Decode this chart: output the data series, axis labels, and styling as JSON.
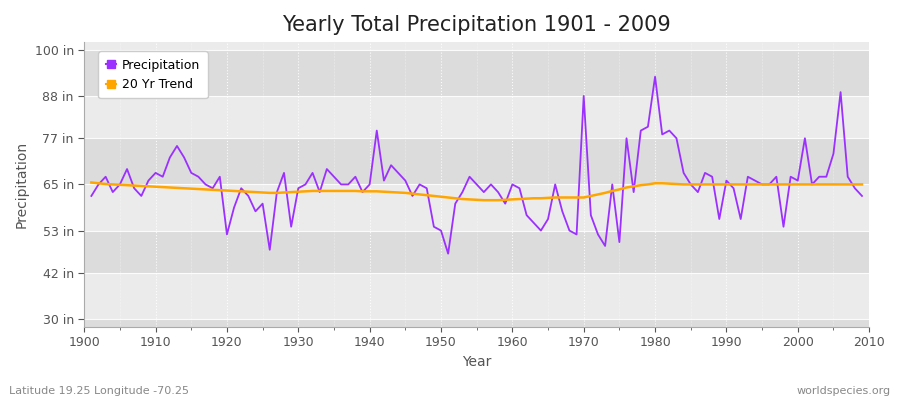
{
  "title": "Yearly Total Precipitation 1901 - 2009",
  "xlabel": "Year",
  "ylabel": "Precipitation",
  "bottom_left_label": "Latitude 19.25 Longitude -70.25",
  "bottom_right_label": "worldspecies.org",
  "years": [
    1901,
    1902,
    1903,
    1904,
    1905,
    1906,
    1907,
    1908,
    1909,
    1910,
    1911,
    1912,
    1913,
    1914,
    1915,
    1916,
    1917,
    1918,
    1919,
    1920,
    1921,
    1922,
    1923,
    1924,
    1925,
    1926,
    1927,
    1928,
    1929,
    1930,
    1931,
    1932,
    1933,
    1934,
    1935,
    1936,
    1937,
    1938,
    1939,
    1940,
    1941,
    1942,
    1943,
    1944,
    1945,
    1946,
    1947,
    1948,
    1949,
    1950,
    1951,
    1952,
    1953,
    1954,
    1955,
    1956,
    1957,
    1958,
    1959,
    1960,
    1961,
    1962,
    1963,
    1964,
    1965,
    1966,
    1967,
    1968,
    1969,
    1970,
    1971,
    1972,
    1973,
    1974,
    1975,
    1976,
    1977,
    1978,
    1979,
    1980,
    1981,
    1982,
    1983,
    1984,
    1985,
    1986,
    1987,
    1988,
    1989,
    1990,
    1991,
    1992,
    1993,
    1994,
    1995,
    1996,
    1997,
    1998,
    1999,
    2000,
    2001,
    2002,
    2003,
    2004,
    2005,
    2006,
    2007,
    2008,
    2009
  ],
  "precip": [
    62,
    65,
    67,
    63,
    65,
    69,
    64,
    62,
    66,
    68,
    67,
    72,
    75,
    72,
    68,
    67,
    65,
    64,
    67,
    52,
    59,
    64,
    62,
    58,
    60,
    48,
    63,
    68,
    54,
    64,
    65,
    68,
    63,
    69,
    67,
    65,
    65,
    67,
    63,
    65,
    79,
    66,
    70,
    68,
    66,
    62,
    65,
    64,
    54,
    53,
    47,
    60,
    63,
    67,
    65,
    63,
    65,
    63,
    60,
    65,
    64,
    57,
    55,
    53,
    56,
    65,
    58,
    53,
    52,
    88,
    57,
    52,
    49,
    65,
    50,
    77,
    63,
    79,
    80,
    93,
    78,
    79,
    77,
    68,
    65,
    63,
    68,
    67,
    56,
    66,
    64,
    56,
    67,
    66,
    65,
    65,
    67,
    54,
    67,
    66,
    77,
    65,
    67,
    67,
    73,
    89,
    67,
    64,
    62
  ],
  "trend": [
    65.5,
    65.3,
    65.1,
    65.0,
    64.9,
    64.8,
    64.7,
    64.6,
    64.5,
    64.4,
    64.3,
    64.2,
    64.1,
    64.0,
    63.9,
    63.8,
    63.7,
    63.6,
    63.5,
    63.4,
    63.3,
    63.2,
    63.1,
    63.0,
    62.9,
    62.8,
    62.8,
    62.9,
    63.0,
    63.1,
    63.2,
    63.3,
    63.3,
    63.3,
    63.3,
    63.3,
    63.3,
    63.3,
    63.2,
    63.2,
    63.2,
    63.1,
    63.0,
    62.9,
    62.8,
    62.6,
    62.4,
    62.2,
    62.0,
    61.8,
    61.6,
    61.4,
    61.2,
    61.1,
    61.0,
    60.9,
    60.9,
    60.9,
    61.0,
    61.1,
    61.2,
    61.3,
    61.4,
    61.4,
    61.5,
    61.6,
    61.6,
    61.6,
    61.6,
    61.6,
    62.0,
    62.4,
    62.8,
    63.3,
    63.7,
    64.2,
    64.5,
    64.8,
    65.0,
    65.3,
    65.3,
    65.2,
    65.1,
    65.0,
    65.0,
    65.0,
    65.0,
    65.0,
    65.0,
    65.0,
    65.0,
    65.0,
    65.0,
    65.0,
    65.0,
    65.0,
    65.0,
    65.0,
    65.0,
    65.0,
    65.0,
    65.0,
    65.0,
    65.0,
    65.0,
    65.0,
    65.0,
    65.0,
    65.0
  ],
  "precip_color": "#9B30FF",
  "trend_color": "#FFA500",
  "bg_color": "#FFFFFF",
  "plot_bg_color_light": "#EBEBEB",
  "plot_bg_color_dark": "#DCDCDC",
  "yticks": [
    30,
    42,
    53,
    65,
    77,
    88,
    100
  ],
  "ytick_labels": [
    "30 in",
    "42 in",
    "53 in",
    "65 in",
    "77 in",
    "88 in",
    "100 in"
  ],
  "ylim": [
    28,
    102
  ],
  "xlim": [
    1900,
    2010
  ],
  "grid_color": "#FFFFFF",
  "title_fontsize": 15,
  "axis_label_fontsize": 10,
  "tick_fontsize": 9,
  "label_color": "#555555",
  "bottom_label_color": "#888888"
}
